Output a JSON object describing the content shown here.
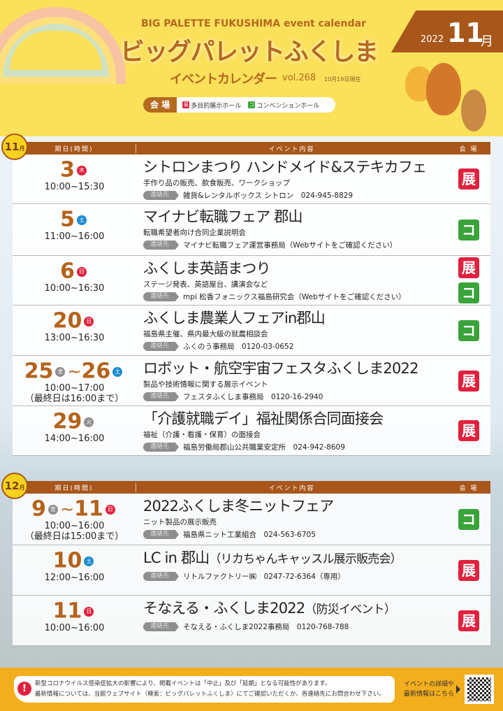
{
  "header": {
    "en_title": "BIG PALETTE FUKUSHIMA event calendar",
    "jp_title": "ビッグパレットふくしま",
    "subtitle": "イベントカレンダー",
    "vol": "vol.268",
    "as_of": "10月19日現在",
    "year": "2022",
    "month": "11",
    "month_kanji": "月"
  },
  "legend": {
    "label": "会 場",
    "items": [
      {
        "icon": "展",
        "text": "多目的展示ホール",
        "color": "#e0213d"
      },
      {
        "icon": "コ",
        "text": "コンベンションホール",
        "color": "#3aa33a"
      }
    ]
  },
  "venue_colors": {
    "展": "#e0213d",
    "コ": "#3aa33a"
  },
  "columns": {
    "date": "期日(時間)",
    "event": "イベント内容",
    "venue": "会 場"
  },
  "contact_label": "連絡先",
  "months": [
    {
      "label": "11",
      "unit": "月",
      "events": [
        {
          "day": "3",
          "wd": "木",
          "wdc": "#e0213d",
          "time": [
            "10:00~15:30"
          ],
          "title": "シトロンまつり ハンドメイド&ステキカフェ",
          "desc": "手作り品の販売、飲食販売、ワークショップ",
          "contact": "雑貨&レンタルボックス シトロン　024-945-8829",
          "venues": [
            "展"
          ]
        },
        {
          "day": "5",
          "wd": "土",
          "wdc": "#1a8ad0",
          "time": [
            "11:00~16:00"
          ],
          "title": "マイナビ転職フェア 郡山",
          "desc": "転職希望者向け合同企業説明会",
          "contact": "マイナビ転職フェア運営事務局（Webサイトをご確認ください）",
          "venues": [
            "コ"
          ]
        },
        {
          "day": "6",
          "wd": "日",
          "wdc": "#e0213d",
          "time": [
            "10:00~16:30"
          ],
          "title": "ふくしま英語まつり",
          "desc": "ステージ発表、英語屋台、講演会など",
          "contact": "mpi 松香フォニックス福島研究会（Webサイトをご確認ください）",
          "venues": [
            "展",
            "コ"
          ]
        },
        {
          "day": "20",
          "wd": "日",
          "wdc": "#e0213d",
          "time": [
            "13:00~16:30"
          ],
          "title": "ふくしま農業人フェアin郡山",
          "desc": "福島県主催、県内最大級の就農相談会",
          "contact": "ふくのう事務局　0120-03-0652",
          "venues": [
            "コ"
          ]
        },
        {
          "day": "25",
          "wd": "金",
          "wdc": "#8e8e8e",
          "end_day": "26",
          "end_wd": "土",
          "end_wdc": "#1a8ad0",
          "time": [
            "10:00~17:00",
            "（最終日は16:00まで）"
          ],
          "title": "ロボット・航空宇宙フェスタふくしま2022",
          "desc": "製品や技術情報に関する展示イベント",
          "contact": "フェスタふくしま事務局　0120-16-2940",
          "venues": [
            "展"
          ]
        },
        {
          "day": "29",
          "wd": "火",
          "wdc": "#8e8e8e",
          "time": [
            "14:00~16:00"
          ],
          "title": "「介護就職デイ」福祉関係合同面接会",
          "desc": "福祉（介護・看護・保育）の面接会",
          "contact": "福島労働局郡山公共職業安定所　024-942-8609",
          "venues": [
            "展"
          ]
        }
      ]
    },
    {
      "label": "12",
      "unit": "月",
      "events": [
        {
          "day": "9",
          "wd": "金",
          "wdc": "#8e8e8e",
          "end_day": "11",
          "end_wd": "日",
          "end_wdc": "#e0213d",
          "time": [
            "10:00~16:00",
            "（最終日は15:00まで）"
          ],
          "title": "2022ふくしま冬ニットフェア",
          "desc": "ニット製品の展示販売",
          "contact": "福島県ニット工業組合　024-563-6705",
          "venues": [
            "コ"
          ]
        },
        {
          "day": "10",
          "wd": "土",
          "wdc": "#1a8ad0",
          "time": [
            "12:00~16:00"
          ],
          "title": "LC in 郡山",
          "title_suffix": "（リカちゃんキャッスル展示販売会）",
          "contact": "リトルファクトリー㈱　0247-72-6364（専用）",
          "venues": [
            "展"
          ]
        },
        {
          "day": "11",
          "wd": "日",
          "wdc": "#e0213d",
          "time": [
            "10:00~16:00"
          ],
          "title": "そなえる・ふくしま2022",
          "title_suffix": "（防災イベント）",
          "contact": "そなえる・ふくしま2022事務局　0120-768-788",
          "venues": [
            "展"
          ]
        }
      ]
    }
  ],
  "footer": {
    "notice": [
      "新型コロナウイルス感染症拡大の影響により、掲載イベントは「中止」及び「延期」となる可能性があります。",
      "最新情報については、当館ウェブサイト（検索：ビッグパレットふくしま）にてご確認いただくか、各連絡先にお問合わせ下さい。"
    ],
    "more": [
      "イベントの詳細や",
      "最新情報はこちら"
    ]
  }
}
